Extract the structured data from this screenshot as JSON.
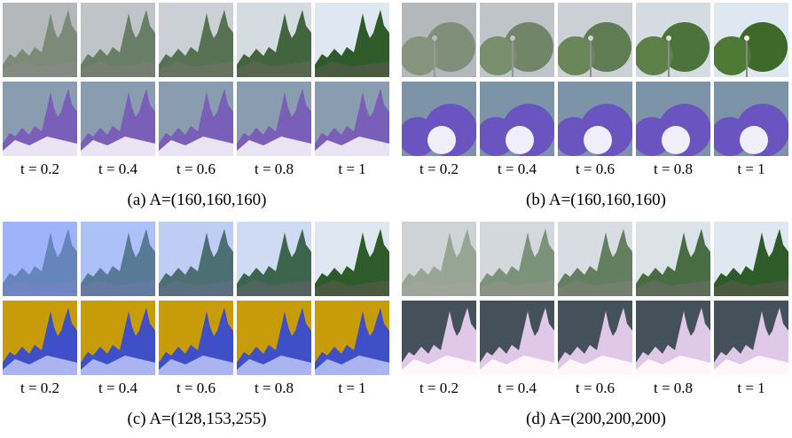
{
  "panels": [
    {
      "caption": "(a) A=(160,160,160)",
      "labels": [
        "t = 0.2",
        "t = 0.4",
        "t = 0.6",
        "t = 0.8",
        "t = 1"
      ]
    },
    {
      "caption": "(b) A=(160,160,160)",
      "labels": [
        "t = 0.2",
        "t = 0.4",
        "t = 0.6",
        "t = 0.8",
        "t = 1"
      ]
    },
    {
      "caption": "(c) A=(128,153,255)",
      "labels": [
        "t = 0.2",
        "t = 0.4",
        "t = 0.6",
        "t = 0.8",
        "t = 1"
      ]
    },
    {
      "caption": "(d) A=(200,200,200)",
      "labels": [
        "t = 0.2",
        "t = 0.4",
        "t = 0.6",
        "t = 0.8",
        "t = 1"
      ]
    }
  ]
}
